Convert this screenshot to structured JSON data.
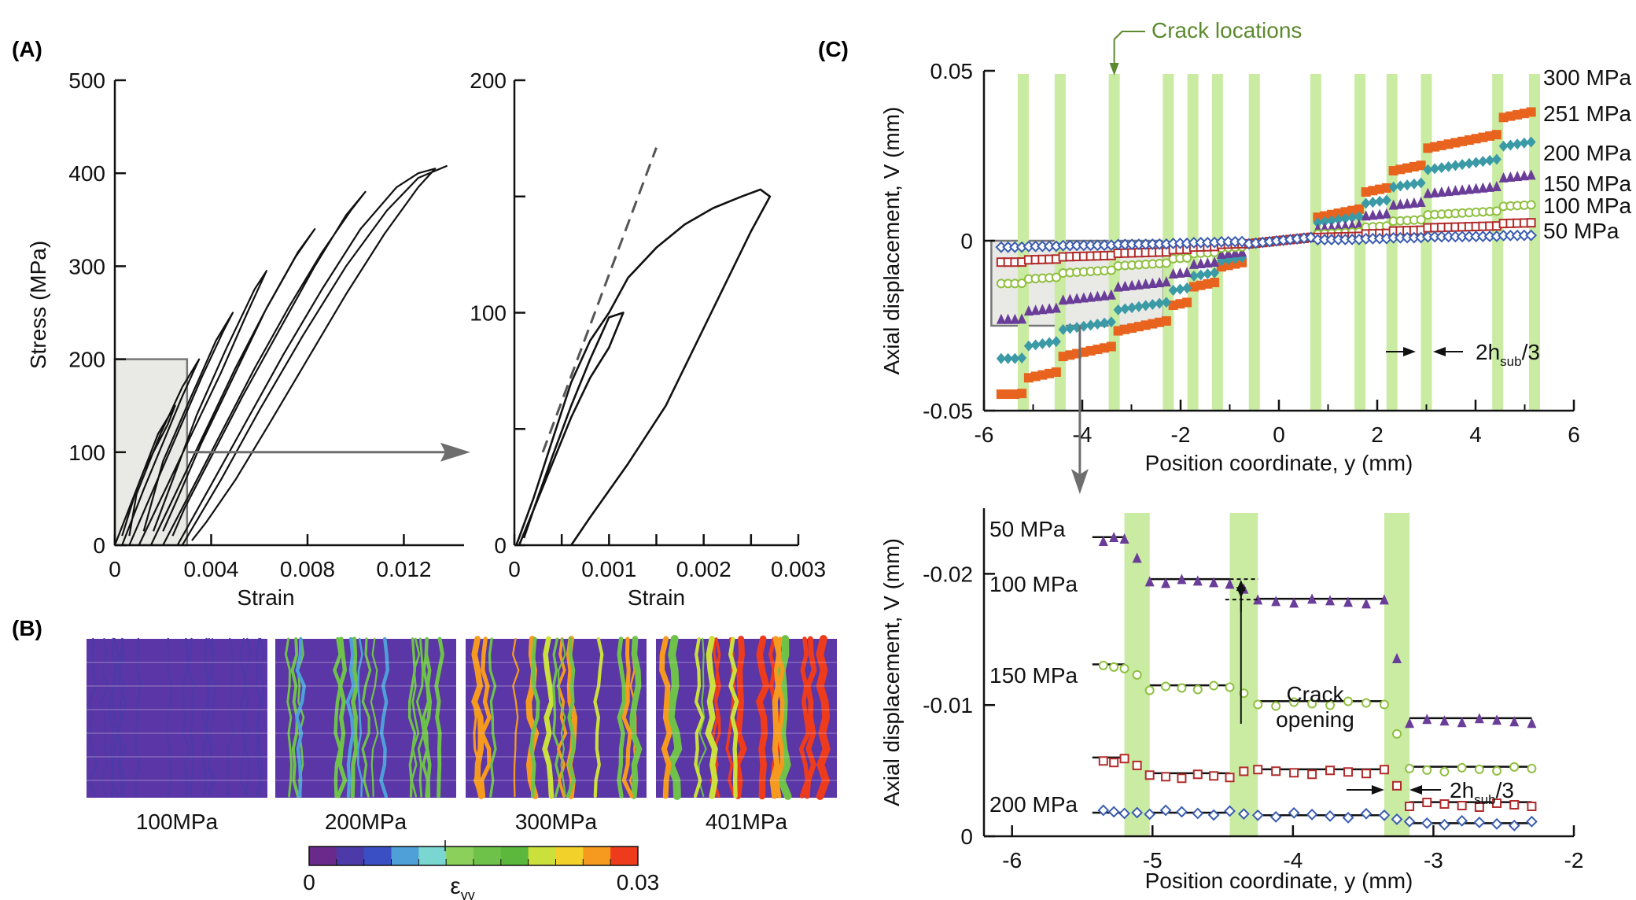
{
  "panel_labels": {
    "a": "(A)",
    "b": "(B)",
    "c": "(C)"
  },
  "colors": {
    "orange": "#e8641e",
    "teal": "#3a9aa6",
    "purple": "#6a3d99",
    "olive": "#8fbf3f",
    "red": "#b22a2a",
    "blue": "#3a5cb0",
    "crack_band": "#c9eba2",
    "inset_box": "#e9e9e6",
    "arrow": "#6e6e6e",
    "crack_label": "#5c8a2e"
  },
  "chart_data": [
    {
      "id": "A1",
      "type": "line",
      "title": "",
      "xlabel": "Strain",
      "ylabel": "Stress (MPa)",
      "xlim": [
        0,
        0.0145
      ],
      "ylim": [
        0,
        500
      ],
      "xticks": [
        "0",
        "0.004",
        "0.008",
        "0.012"
      ],
      "yticks": [
        "0",
        "100",
        "200",
        "300",
        "400",
        "500"
      ],
      "series": [
        {
          "values": [
            [
              0,
              0
            ],
            [
              0.0006,
              40
            ],
            [
              0.0012,
              80
            ],
            [
              0.0018,
              110
            ],
            [
              0.0022,
              130
            ],
            [
              0.0025,
              150
            ],
            [
              0.0018,
              120
            ],
            [
              0.0009,
              60
            ],
            [
              0.0003,
              10
            ]
          ]
        },
        {
          "values": [
            [
              0.0003,
              0
            ],
            [
              0.0012,
              60
            ],
            [
              0.002,
              110
            ],
            [
              0.0028,
              160
            ],
            [
              0.0035,
              200
            ],
            [
              0.0028,
              170
            ],
            [
              0.0019,
              120
            ],
            [
              0.0009,
              55
            ],
            [
              0.0006,
              10
            ]
          ]
        },
        {
          "values": [
            [
              0.0006,
              0
            ],
            [
              0.0016,
              60
            ],
            [
              0.0026,
              120
            ],
            [
              0.0036,
              180
            ],
            [
              0.0045,
              230
            ],
            [
              0.0049,
              250
            ],
            [
              0.0042,
              220
            ],
            [
              0.003,
              150
            ],
            [
              0.002,
              90
            ],
            [
              0.0012,
              15
            ]
          ]
        },
        {
          "values": [
            [
              0.001,
              0
            ],
            [
              0.0021,
              60
            ],
            [
              0.0032,
              120
            ],
            [
              0.0044,
              185
            ],
            [
              0.0055,
              250
            ],
            [
              0.0063,
              295
            ],
            [
              0.0058,
              275
            ],
            [
              0.0046,
              210
            ],
            [
              0.0034,
              140
            ],
            [
              0.0024,
              70
            ],
            [
              0.0016,
              15
            ]
          ]
        },
        {
          "values": [
            [
              0.0015,
              0
            ],
            [
              0.0026,
              60
            ],
            [
              0.0038,
              125
            ],
            [
              0.005,
              190
            ],
            [
              0.0062,
              250
            ],
            [
              0.0075,
              310
            ],
            [
              0.0083,
              340
            ],
            [
              0.0076,
              315
            ],
            [
              0.0063,
              255
            ],
            [
              0.005,
              185
            ],
            [
              0.0036,
              110
            ],
            [
              0.0026,
              50
            ],
            [
              0.002,
              15
            ]
          ]
        },
        {
          "values": [
            [
              0.002,
              0
            ],
            [
              0.0032,
              60
            ],
            [
              0.0045,
              125
            ],
            [
              0.0058,
              190
            ],
            [
              0.0072,
              255
            ],
            [
              0.0086,
              315
            ],
            [
              0.0098,
              360
            ],
            [
              0.0104,
              380
            ],
            [
              0.0096,
              355
            ],
            [
              0.0083,
              300
            ],
            [
              0.0068,
              230
            ],
            [
              0.0053,
              160
            ],
            [
              0.004,
              95
            ],
            [
              0.0029,
              40
            ],
            [
              0.0024,
              10
            ]
          ]
        },
        {
          "values": [
            [
              0.0026,
              0
            ],
            [
              0.004,
              65
            ],
            [
              0.0055,
              135
            ],
            [
              0.007,
              205
            ],
            [
              0.0086,
              275
            ],
            [
              0.0102,
              340
            ],
            [
              0.0117,
              385
            ],
            [
              0.0126,
              400
            ],
            [
              0.0133,
              405
            ],
            [
              0.0126,
              385
            ],
            [
              0.0112,
              335
            ],
            [
              0.0096,
              270
            ],
            [
              0.008,
              200
            ],
            [
              0.0064,
              130
            ],
            [
              0.005,
              70
            ],
            [
              0.0038,
              25
            ],
            [
              0.0032,
              5
            ]
          ]
        },
        {
          "values": [
            [
              0.0028,
              0
            ],
            [
              0.0044,
              70
            ],
            [
              0.006,
              145
            ],
            [
              0.0078,
              225
            ],
            [
              0.0096,
              300
            ],
            [
              0.0113,
              360
            ],
            [
              0.0126,
              395
            ],
            [
              0.0138,
              408
            ]
          ]
        }
      ]
    },
    {
      "id": "A2",
      "type": "line",
      "title": "",
      "xlabel": "Strain",
      "ylabel": "",
      "xlim": [
        0,
        0.003
      ],
      "ylim": [
        0,
        200
      ],
      "xticks": [
        "0",
        "0.001",
        "0.002",
        "0.003"
      ],
      "yticks": [
        "0",
        "100",
        "200"
      ],
      "series": [
        {
          "values": [
            [
              2e-05,
              0
            ],
            [
              0.0002,
              20
            ],
            [
              0.0004,
              45
            ],
            [
              0.0006,
              70
            ],
            [
              0.0008,
              88
            ],
            [
              0.001,
              100
            ],
            [
              0.0012,
              115
            ],
            [
              0.0015,
              128
            ],
            [
              0.0018,
              138
            ],
            [
              0.0021,
              145
            ],
            [
              0.0024,
              150
            ],
            [
              0.0026,
              153
            ],
            [
              0.0027,
              150
            ],
            [
              0.0025,
              135
            ],
            [
              0.0022,
              110
            ],
            [
              0.0019,
              85
            ],
            [
              0.0016,
              60
            ],
            [
              0.0012,
              35
            ],
            [
              0.0008,
              12
            ],
            [
              0.0006,
              0
            ]
          ]
        },
        {
          "values": [
            [
              5e-05,
              0
            ],
            [
              0.0002,
              15
            ],
            [
              0.0004,
              35
            ],
            [
              0.0006,
              55
            ],
            [
              0.0008,
              72
            ],
            [
              0.001,
              85
            ],
            [
              0.00115,
              100
            ],
            [
              0.001,
              98
            ],
            [
              0.0008,
              80
            ],
            [
              0.0006,
              60
            ],
            [
              0.0004,
              38
            ],
            [
              0.0002,
              15
            ],
            [
              0.0001,
              3
            ]
          ]
        },
        {
          "name": "",
          "dashed": true,
          "values": [
            [
              0.0003,
              40
            ],
            [
              0.0015,
              171
            ]
          ]
        }
      ]
    },
    {
      "id": "C1",
      "type": "scatter",
      "title": "",
      "xlabel": "Position coordinate, y (mm)",
      "ylabel": "Axial displacement, V (mm)",
      "xlim": [
        -6,
        6
      ],
      "ylim": [
        -0.05,
        0.05
      ],
      "xticks": [
        "-6",
        "-4",
        "-2",
        "0",
        "2",
        "4",
        "6"
      ],
      "yticks": [
        "0.05",
        "0",
        "-0.05"
      ],
      "annotation": "Crack locations",
      "spacing_label": "2h",
      "spacing_sub": "sub",
      "spacing_suffix": "/3",
      "crack_positions": [
        -5.2,
        -4.45,
        -3.35,
        -2.25,
        -1.75,
        -1.25,
        -0.5,
        0.75,
        1.65,
        2.3,
        3.0,
        4.45,
        5.2
      ],
      "series": [
        {
          "name": "300 MPa",
          "amp": 0.043,
          "color": "orange",
          "marker": "square-filled"
        },
        {
          "name": "251 MPa",
          "amp": 0.033,
          "color": "teal",
          "marker": "diamond-filled"
        },
        {
          "name": "200 MPa",
          "amp": 0.022,
          "color": "purple",
          "marker": "triangle-filled"
        },
        {
          "name": "150 MPa",
          "amp": 0.012,
          "color": "olive",
          "marker": "circle-open"
        },
        {
          "name": "100 MPa",
          "amp": 0.006,
          "color": "red",
          "marker": "square-open"
        },
        {
          "name": "50 MPa",
          "amp": 0.0018,
          "color": "blue",
          "marker": "diamond-open"
        }
      ]
    },
    {
      "id": "C2",
      "type": "scatter",
      "title": "",
      "xlabel": "Position coordinate, y (mm)",
      "ylabel": "Axial displacement, V (mm)",
      "xlim": [
        -6.2,
        -2
      ],
      "ylim": [
        -0.025,
        0
      ],
      "xticks": [
        "-6",
        "-5",
        "-4",
        "-3",
        "-2"
      ],
      "yticks": [
        "0",
        "-0.01",
        "-0.02"
      ],
      "annotation": "Crack opening",
      "spacing_label": "2h",
      "spacing_sub": "sub",
      "spacing_suffix": "/3",
      "crack_bands": [
        [
          -5.2,
          -5.02
        ],
        [
          -4.45,
          -4.25
        ],
        [
          -3.35,
          -3.17
        ]
      ],
      "series": [
        {
          "name": "50 MPa",
          "color": "blue",
          "marker": "diamond-open",
          "segments": [
            [
              -5.35,
              -5.2,
              -0.0018
            ],
            [
              -5.02,
              -4.45,
              -0.0018
            ],
            [
              -4.25,
              -3.35,
              -0.0016
            ],
            [
              -3.17,
              -2.3,
              -0.001
            ]
          ]
        },
        {
          "name": "100 MPa",
          "color": "red",
          "marker": "square-open",
          "segments": [
            [
              -5.35,
              -5.2,
              -0.006
            ],
            [
              -5.02,
              -4.45,
              -0.0048
            ],
            [
              -4.25,
              -3.35,
              -0.0051
            ],
            [
              -3.17,
              -2.3,
              -0.0026
            ]
          ]
        },
        {
          "name": "150 MPa",
          "color": "olive",
          "marker": "circle-open",
          "segments": [
            [
              -5.35,
              -5.2,
              -0.0131
            ],
            [
              -5.02,
              -4.45,
              -0.0115
            ],
            [
              -4.25,
              -3.35,
              -0.0103
            ],
            [
              -3.17,
              -2.3,
              -0.0053
            ]
          ]
        },
        {
          "name": "200 MPa",
          "color": "purple",
          "marker": "triangle-filled",
          "segments": [
            [
              -5.35,
              -5.2,
              -0.0228
            ],
            [
              -5.02,
              -4.45,
              -0.0196
            ],
            [
              -4.25,
              -3.35,
              -0.0181
            ],
            [
              -3.17,
              -2.3,
              -0.009
            ]
          ]
        }
      ]
    },
    {
      "id": "B",
      "type": "heatmap",
      "panels": [
        {
          "label": "100MPa",
          "level": 0.05
        },
        {
          "label": "200MPa",
          "level": 0.35
        },
        {
          "label": "300MPa",
          "level": 0.6
        },
        {
          "label": "401MPa",
          "level": 0.85
        }
      ],
      "colorbar": {
        "min": "0",
        "max": "0.03",
        "label": "ε",
        "label_sub": "yy",
        "colors": [
          "#6a2a8c",
          "#4c3aa8",
          "#3a4fc4",
          "#4fa0d8",
          "#7ad6d0",
          "#8bd05a",
          "#6ec24a",
          "#5bb83c",
          "#cbe03a",
          "#f2d22a",
          "#f59a1e",
          "#ee3b1c"
        ]
      }
    }
  ]
}
